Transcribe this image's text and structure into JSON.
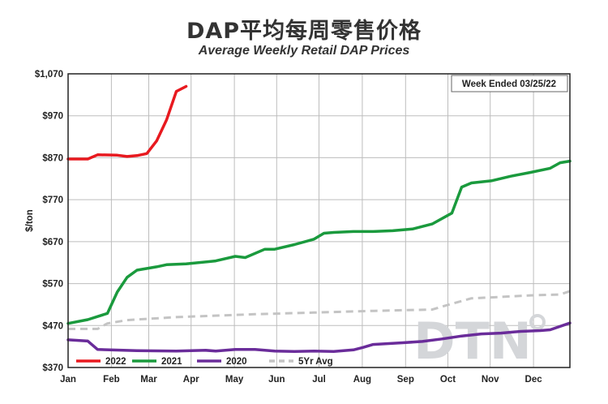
{
  "title": "DAP平均每周零售价格",
  "subtitle": "Average Weekly Retail DAP Prices",
  "badge": "Week Ended 03/25/22",
  "watermark": "DTN",
  "colors": {
    "2022": "#e8191f",
    "2021": "#1a9a3d",
    "2020": "#6a2c9a",
    "5Yr Avg": "#c4c4c4"
  },
  "chart_data": {
    "type": "line",
    "ylabel": "$/ton",
    "ylim": [
      370,
      1070
    ],
    "yticks": [
      370,
      470,
      570,
      670,
      770,
      870,
      970,
      1070
    ],
    "ytick_labels": [
      "$370",
      "$470",
      "$570",
      "$670",
      "$770",
      "$870",
      "$970",
      "$1,070"
    ],
    "xlim": [
      1,
      52
    ],
    "x_tick_labels": [
      "Jan",
      "Feb",
      "Mar",
      "Apr",
      "May",
      "Jun",
      "Jul",
      "Aug",
      "Sep",
      "Oct",
      "Nov",
      "Dec"
    ],
    "x_tick_weeks": [
      1,
      5.4,
      9.2,
      13.5,
      17.9,
      22.2,
      26.5,
      30.9,
      35.3,
      39.6,
      43.9,
      48.3
    ],
    "legend_placement": "bottom-left",
    "grid": true,
    "series": [
      {
        "name": "2022",
        "style": "solid",
        "points": [
          [
            1,
            867
          ],
          [
            3,
            867
          ],
          [
            4,
            877
          ],
          [
            6,
            876
          ],
          [
            7,
            873
          ],
          [
            8,
            875
          ],
          [
            9,
            880
          ],
          [
            10,
            910
          ],
          [
            11,
            960
          ],
          [
            12,
            1028
          ],
          [
            13,
            1040
          ]
        ]
      },
      {
        "name": "2021",
        "style": "solid",
        "points": [
          [
            1,
            475
          ],
          [
            3,
            484
          ],
          [
            5,
            499
          ],
          [
            6,
            550
          ],
          [
            7,
            585
          ],
          [
            8,
            602
          ],
          [
            10,
            610
          ],
          [
            11,
            615
          ],
          [
            13,
            617
          ],
          [
            16,
            624
          ],
          [
            18,
            635
          ],
          [
            19,
            632
          ],
          [
            21,
            652
          ],
          [
            22,
            652
          ],
          [
            24,
            663
          ],
          [
            26,
            676
          ],
          [
            27,
            690
          ],
          [
            28,
            692
          ],
          [
            30,
            694
          ],
          [
            32,
            694
          ],
          [
            34,
            696
          ],
          [
            36,
            700
          ],
          [
            38,
            712
          ],
          [
            40,
            738
          ],
          [
            41,
            800
          ],
          [
            42,
            810
          ],
          [
            44,
            815
          ],
          [
            46,
            826
          ],
          [
            48,
            835
          ],
          [
            50,
            845
          ],
          [
            51,
            858
          ],
          [
            52,
            862
          ]
        ]
      },
      {
        "name": "2020",
        "style": "solid",
        "points": [
          [
            1,
            436
          ],
          [
            3,
            433
          ],
          [
            4,
            413
          ],
          [
            8,
            410
          ],
          [
            12,
            409
          ],
          [
            15,
            411
          ],
          [
            16,
            409
          ],
          [
            18,
            413
          ],
          [
            19,
            413
          ],
          [
            20,
            413
          ],
          [
            22,
            409
          ],
          [
            24,
            408
          ],
          [
            26,
            409
          ],
          [
            28,
            408
          ],
          [
            30,
            412
          ],
          [
            31,
            418
          ],
          [
            32,
            425
          ],
          [
            35,
            429
          ],
          [
            37,
            432
          ],
          [
            39,
            438
          ],
          [
            41,
            445
          ],
          [
            43,
            450
          ],
          [
            45,
            452
          ],
          [
            47,
            456
          ],
          [
            49,
            458
          ],
          [
            50,
            460
          ],
          [
            52,
            476
          ]
        ]
      },
      {
        "name": "5Yr Avg",
        "style": "dashed",
        "points": [
          [
            1,
            462
          ],
          [
            4,
            462
          ],
          [
            5,
            475
          ],
          [
            7,
            483
          ],
          [
            12,
            490
          ],
          [
            20,
            497
          ],
          [
            26,
            501
          ],
          [
            32,
            505
          ],
          [
            38,
            508
          ],
          [
            40,
            522
          ],
          [
            42,
            535
          ],
          [
            44,
            537
          ],
          [
            48,
            542
          ],
          [
            51,
            544
          ],
          [
            52,
            552
          ]
        ]
      }
    ]
  }
}
